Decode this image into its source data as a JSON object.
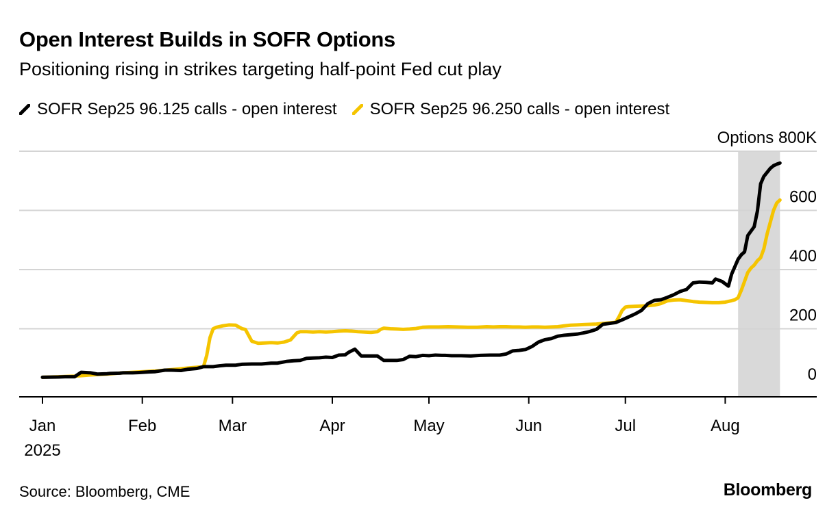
{
  "header": {
    "title": "Open Interest Builds in SOFR Options",
    "subtitle": "Positioning rising in strikes targeting half-point Fed cut play"
  },
  "footer": {
    "source": "Source: Bloomberg, CME",
    "brand": "Bloomberg"
  },
  "colors": {
    "series_black": "#000000",
    "series_yellow": "#F5C400",
    "grid": "#d4d4d4",
    "highlight": "#d9d9d9",
    "axis": "#000000"
  },
  "chart_data": {
    "type": "line",
    "title": "Open Interest Builds in SOFR Options",
    "subtitle": "Positioning rising in strikes targeting half-point Fed cut play",
    "ylabel": "Options",
    "y_unit_suffix": "800K",
    "ylim": [
      -40,
      800
    ],
    "y_ticks": [
      0,
      200,
      400,
      600,
      800
    ],
    "y_tick_labels": [
      "0",
      "200",
      "400",
      "600",
      "Options 800K"
    ],
    "x_domain": [
      0,
      230
    ],
    "x_ticks": [
      {
        "day": 0,
        "label": "Jan"
      },
      {
        "day": 31,
        "label": "Feb"
      },
      {
        "day": 59,
        "label": "Mar"
      },
      {
        "day": 90,
        "label": "Apr"
      },
      {
        "day": 120,
        "label": "May"
      },
      {
        "day": 151,
        "label": "Jun"
      },
      {
        "day": 181,
        "label": "Jul"
      },
      {
        "day": 212,
        "label": "Aug"
      }
    ],
    "x_year_label": "2025",
    "x_unit": "days since Jan 1, 2025",
    "shaded_region": {
      "start_day": 216,
      "end_day": 229
    },
    "legend_position": "top-left",
    "grid": true,
    "series": [
      {
        "name": "SOFR Sep25 96.125 calls - open interest",
        "color": "#000000",
        "x": [
          0,
          5,
          7,
          10,
          12,
          15,
          17,
          20,
          21,
          24,
          25,
          28,
          30,
          33,
          35,
          38,
          40,
          43,
          45,
          48,
          50,
          53,
          55,
          57,
          60,
          62,
          65,
          68,
          71,
          73,
          76,
          78,
          80,
          82,
          84,
          86,
          88,
          90,
          92,
          94,
          95,
          97,
          99,
          100,
          102,
          104,
          106,
          107,
          110,
          112,
          114,
          116,
          118,
          120,
          122,
          124,
          125,
          127,
          130,
          133,
          136,
          139,
          142,
          144,
          146,
          148,
          150,
          152,
          154,
          156,
          158,
          160,
          162,
          164,
          166,
          168,
          170,
          172,
          174,
          176,
          178,
          180,
          182,
          184,
          186,
          188,
          190,
          192,
          194,
          196,
          198,
          200,
          202,
          204,
          206,
          208,
          209,
          211,
          213,
          214,
          215,
          216,
          217,
          218,
          219,
          221,
          222,
          223,
          224,
          226,
          227,
          228,
          229
        ],
        "values": [
          36,
          37,
          38,
          38,
          53,
          51,
          47,
          48,
          49,
          50,
          51,
          51,
          52,
          54,
          55,
          60,
          60,
          59,
          63,
          66,
          72,
          72,
          75,
          77,
          77,
          80,
          81,
          81,
          84,
          84,
          90,
          92,
          93,
          100,
          101,
          102,
          104,
          103,
          111,
          112,
          120,
          131,
          108,
          108,
          108,
          108,
          93,
          93,
          93,
          96,
          107,
          106,
          110,
          109,
          111,
          110,
          110,
          109,
          109,
          108,
          110,
          111,
          111,
          115,
          125,
          127,
          130,
          140,
          155,
          163,
          167,
          175,
          178,
          180,
          182,
          186,
          191,
          198,
          215,
          218,
          221,
          230,
          240,
          250,
          262,
          285,
          296,
          298,
          306,
          315,
          326,
          333,
          355,
          358,
          357,
          355,
          368,
          360,
          344,
          385,
          410,
          435,
          450,
          460,
          515,
          545,
          598,
          690,
          715,
          742,
          751,
          756,
          760
        ]
      },
      {
        "name": "SOFR Sep25 96.250 calls - open interest",
        "color": "#F5C400",
        "x": [
          0,
          5,
          10,
          15,
          20,
          25,
          30,
          35,
          40,
          45,
          48,
          50,
          51,
          52,
          53,
          54,
          56,
          58,
          60,
          62,
          63,
          65,
          67,
          69,
          71,
          73,
          75,
          77,
          79,
          80,
          82,
          84,
          86,
          88,
          90,
          92,
          94,
          96,
          98,
          100,
          102,
          104,
          105,
          106,
          108,
          110,
          112,
          114,
          116,
          118,
          120,
          123,
          126,
          129,
          132,
          135,
          138,
          140,
          142,
          144,
          146,
          148,
          150,
          152,
          154,
          156,
          158,
          160,
          162,
          164,
          166,
          168,
          170,
          172,
          174,
          176,
          178,
          179,
          180,
          181,
          182,
          184,
          186,
          188,
          190,
          192,
          194,
          196,
          198,
          200,
          202,
          204,
          206,
          208,
          210,
          212,
          214,
          215,
          216,
          217,
          218,
          219,
          220,
          221,
          222,
          223,
          224,
          225,
          226,
          227,
          228,
          229
        ],
        "values": [
          36,
          38,
          40,
          44,
          47,
          51,
          54,
          57,
          62,
          67,
          70,
          72,
          110,
          170,
          200,
          205,
          210,
          213,
          212,
          200,
          198,
          158,
          151,
          152,
          153,
          152,
          155,
          162,
          186,
          190,
          190,
          189,
          190,
          189,
          190,
          192,
          193,
          192,
          190,
          189,
          188,
          190,
          198,
          202,
          200,
          199,
          198,
          199,
          201,
          205,
          206,
          206,
          207,
          206,
          205,
          205,
          207,
          206,
          207,
          207,
          206,
          206,
          205,
          206,
          206,
          205,
          206,
          207,
          210,
          212,
          213,
          214,
          215,
          216,
          218,
          220,
          222,
          240,
          262,
          273,
          275,
          276,
          277,
          278,
          280,
          285,
          294,
          297,
          298,
          295,
          292,
          290,
          289,
          288,
          288,
          290,
          295,
          298,
          305,
          330,
          360,
          390,
          405,
          415,
          430,
          440,
          470,
          520,
          560,
          600,
          625,
          635
        ]
      }
    ]
  }
}
